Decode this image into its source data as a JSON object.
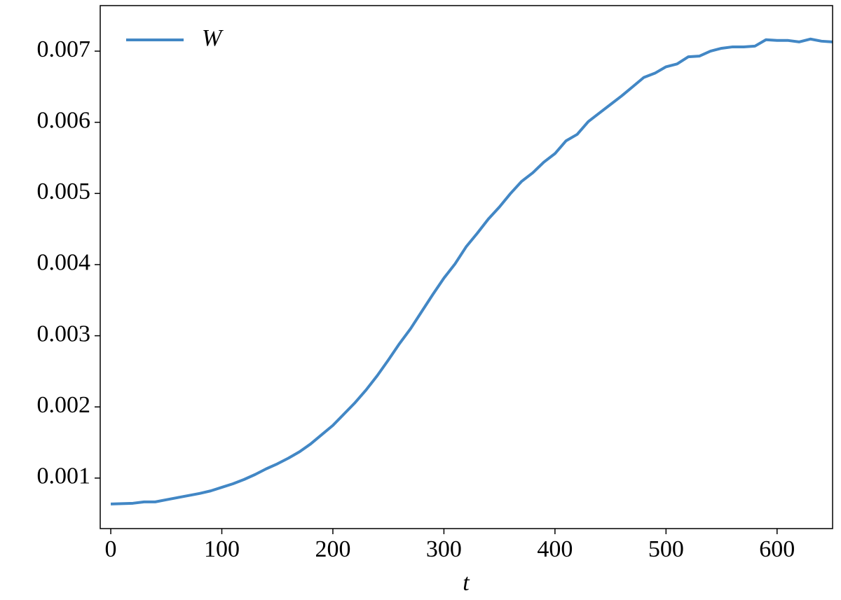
{
  "chart_data": {
    "type": "line",
    "xlabel": "t",
    "x": [
      0,
      10,
      20,
      30,
      40,
      50,
      60,
      70,
      80,
      90,
      100,
      110,
      120,
      130,
      140,
      150,
      160,
      170,
      180,
      190,
      200,
      210,
      220,
      230,
      240,
      250,
      260,
      270,
      280,
      290,
      300,
      310,
      320,
      330,
      340,
      350,
      360,
      370,
      380,
      390,
      400,
      410,
      420,
      430,
      440,
      450,
      460,
      470,
      480,
      490,
      500,
      510,
      520,
      530,
      540,
      550,
      560,
      570,
      580,
      590,
      600,
      610,
      620,
      630,
      640,
      650
    ],
    "series": [
      {
        "name": "W",
        "color": "#4287c5",
        "values": [
          0.000636,
          0.00064,
          0.000646,
          0.000665,
          0.000665,
          0.000695,
          0.000725,
          0.000754,
          0.000784,
          0.00082,
          0.00087,
          0.00092,
          0.00098,
          0.00105,
          0.00113,
          0.0012,
          0.00128,
          0.00137,
          0.00148,
          0.00161,
          0.00174,
          0.0019,
          0.00206,
          0.00224,
          0.00244,
          0.00266,
          0.00289,
          0.0031,
          0.00334,
          0.00358,
          0.00381,
          0.00401,
          0.00425,
          0.00444,
          0.00464,
          0.00481,
          0.005,
          0.00517,
          0.00529,
          0.00544,
          0.00556,
          0.00574,
          0.00583,
          0.00601,
          0.00613,
          0.00625,
          0.00637,
          0.0065,
          0.00663,
          0.00669,
          0.00678,
          0.00682,
          0.00692,
          0.00693,
          0.007,
          0.00704,
          0.00706,
          0.00706,
          0.00707,
          0.00716,
          0.00715,
          0.00715,
          0.00713,
          0.00717,
          0.00714,
          0.00713
        ]
      }
    ],
    "xlim": [
      -9.5,
      650
    ],
    "ylim": [
      0.00029,
      0.00764
    ],
    "xticks": [
      0,
      100,
      200,
      300,
      400,
      500,
      600
    ],
    "yticks": [
      0.001,
      0.002,
      0.003,
      0.004,
      0.005,
      0.006,
      0.007
    ],
    "legend": "upper left"
  }
}
